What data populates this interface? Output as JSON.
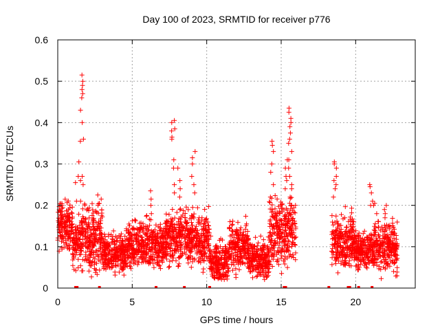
{
  "chart_data": {
    "type": "scatter",
    "title": "Day 100 of 2023, SRMTID for receiver p776",
    "xlabel": "GPS time / hours",
    "ylabel": "SRMTID / TECUs",
    "xlim": [
      0,
      24
    ],
    "ylim": [
      0,
      0.6
    ],
    "x_ticks": [
      0,
      5,
      10,
      15,
      20
    ],
    "x_tick_labels": [
      "0",
      "5",
      "10",
      "15",
      "20"
    ],
    "y_ticks": [
      0,
      0.1,
      0.2,
      0.3,
      0.4,
      0.5,
      0.6
    ],
    "y_tick_labels": [
      "0",
      "0.1",
      "0.2",
      "0.3",
      "0.4",
      "0.5",
      "0.6"
    ],
    "grid": true,
    "marker": "plus",
    "series_color": "#ff0000",
    "bottom_markers_x": [
      1.2,
      1.3,
      2.8,
      6.6,
      8.5,
      10.2,
      15.2,
      15.3,
      18.2,
      19.5,
      19.6,
      20.2,
      21.1
    ],
    "segments": [
      {
        "range": [
          0.0,
          1.0
        ],
        "mean": 0.15,
        "spread": 0.03
      },
      {
        "range": [
          1.0,
          1.4
        ],
        "mean": 0.11,
        "spread": 0.03
      },
      {
        "range": [
          1.4,
          3.0
        ],
        "mean": 0.12,
        "spread": 0.04
      },
      {
        "range": [
          3.0,
          4.6
        ],
        "mean": 0.08,
        "spread": 0.025
      },
      {
        "range": [
          4.6,
          7.2
        ],
        "mean": 0.105,
        "spread": 0.03
      },
      {
        "range": [
          7.2,
          10.2
        ],
        "mean": 0.12,
        "spread": 0.035
      },
      {
        "range": [
          10.2,
          11.5
        ],
        "mean": 0.065,
        "spread": 0.025
      },
      {
        "range": [
          11.5,
          12.8
        ],
        "mean": 0.1,
        "spread": 0.03
      },
      {
        "range": [
          12.8,
          14.2
        ],
        "mean": 0.07,
        "spread": 0.025
      },
      {
        "range": [
          14.2,
          16.0
        ],
        "mean": 0.14,
        "spread": 0.045
      },
      {
        "range": [
          18.4,
          20.0
        ],
        "mean": 0.11,
        "spread": 0.035
      },
      {
        "range": [
          20.0,
          21.2
        ],
        "mean": 0.09,
        "spread": 0.025
      },
      {
        "range": [
          21.2,
          22.8
        ],
        "mean": 0.1,
        "spread": 0.03
      }
    ],
    "spikes": [
      {
        "x": 1.6,
        "values": [
          0.515,
          0.5,
          0.49,
          0.48,
          0.47,
          0.46,
          0.43,
          0.4,
          0.36,
          0.355,
          0.27,
          0.26,
          0.25,
          0.21
        ]
      },
      {
        "x": 1.3,
        "values": [
          0.305,
          0.27,
          0.255,
          0.21
        ]
      },
      {
        "x": 2.8,
        "values": [
          0.225,
          0.215,
          0.205,
          0.2
        ]
      },
      {
        "x": 7.75,
        "values": [
          0.405,
          0.4,
          0.385,
          0.38,
          0.365,
          0.36,
          0.31,
          0.29,
          0.25,
          0.23
        ]
      },
      {
        "x": 8.1,
        "values": [
          0.29,
          0.26,
          0.24,
          0.22
        ]
      },
      {
        "x": 9.1,
        "values": [
          0.33,
          0.315,
          0.3,
          0.27,
          0.25,
          0.23
        ]
      },
      {
        "x": 14.4,
        "values": [
          0.355,
          0.345,
          0.33,
          0.3,
          0.28,
          0.25,
          0.22
        ]
      },
      {
        "x": 15.6,
        "values": [
          0.435,
          0.425,
          0.41,
          0.4,
          0.39,
          0.375,
          0.36,
          0.35,
          0.33,
          0.31,
          0.29,
          0.27,
          0.25,
          0.24,
          0.22
        ]
      },
      {
        "x": 15.3,
        "values": [
          0.31,
          0.29,
          0.27,
          0.26
        ]
      },
      {
        "x": 18.6,
        "values": [
          0.305,
          0.3,
          0.29,
          0.27,
          0.26,
          0.25,
          0.24,
          0.22
        ]
      },
      {
        "x": 21.05,
        "values": [
          0.25,
          0.245,
          0.23,
          0.21,
          0.2
        ]
      },
      {
        "x": 21.3,
        "values": [
          0.205,
          0.2,
          0.18
        ]
      },
      {
        "x": 22.0,
        "values": [
          0.2,
          0.19,
          0.18,
          0.17
        ]
      },
      {
        "x": 6.2,
        "values": [
          0.235,
          0.215,
          0.2,
          0.18
        ]
      }
    ]
  }
}
